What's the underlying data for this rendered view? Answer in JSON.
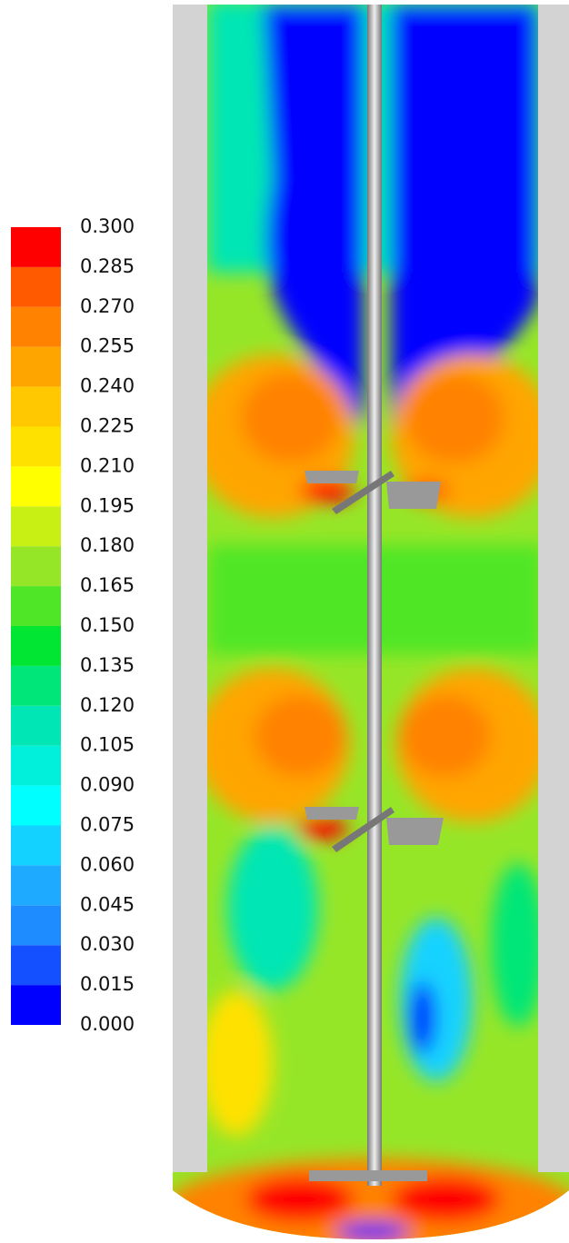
{
  "chart_data": {
    "type": "colorbar",
    "ylim": [
      0,
      0.3
    ],
    "yticks": [
      {
        "value": 0,
        "label": "0.000"
      },
      {
        "value": 0.015,
        "label": "0.015"
      },
      {
        "value": 0.03,
        "label": "0.030"
      },
      {
        "value": 0.045,
        "label": "0.045"
      },
      {
        "value": 0.06,
        "label": "0.060"
      },
      {
        "value": 0.075,
        "label": "0.075"
      },
      {
        "value": 0.09,
        "label": "0.090"
      },
      {
        "value": 0.105,
        "label": "0.105"
      },
      {
        "value": 0.12,
        "label": "0.120"
      },
      {
        "value": 0.135,
        "label": "0.135"
      },
      {
        "value": 0.15,
        "label": "0.150"
      },
      {
        "value": 0.165,
        "label": "0.165"
      },
      {
        "value": 0.18,
        "label": "0.180"
      },
      {
        "value": 0.195,
        "label": "0.195"
      },
      {
        "value": 0.21,
        "label": "0.210"
      },
      {
        "value": 0.225,
        "label": "0.225"
      },
      {
        "value": 0.24,
        "label": "0.240"
      },
      {
        "value": 0.255,
        "label": "0.255"
      },
      {
        "value": 0.27,
        "label": "0.270"
      },
      {
        "value": 0.285,
        "label": "0.285"
      },
      {
        "value": 0.3,
        "label": "0.300"
      }
    ],
    "colors": [
      "#0000ff",
      "#1450ff",
      "#1e8cff",
      "#1eaaff",
      "#14d2ff",
      "#00ffff",
      "#00f0dc",
      "#00e6b4",
      "#00e678",
      "#00e632",
      "#50e628",
      "#96e628",
      "#c8f014",
      "#ffff00",
      "#ffe100",
      "#ffc800",
      "#ffa500",
      "#ff8200",
      "#ff5a00",
      "#ff0000"
    ]
  }
}
